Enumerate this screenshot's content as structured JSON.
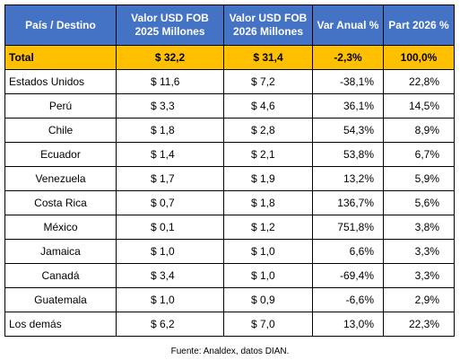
{
  "colors": {
    "header_bg": "#4472c4",
    "header_text": "#ffffff",
    "total_bg": "#ffc000",
    "border": "#000000"
  },
  "table": {
    "headers": [
      {
        "lines": [
          "País / Destino"
        ]
      },
      {
        "lines": [
          "Valor USD FOB",
          "2025 Millones"
        ]
      },
      {
        "lines": [
          "Valor USD FOB",
          "2026 Millones"
        ]
      },
      {
        "lines": [
          "Var Anual %"
        ]
      },
      {
        "lines": [
          "Part 2026 %"
        ]
      }
    ],
    "total": {
      "label": "Total",
      "v2025": "$ 32,2",
      "v2026": "$ 31,4",
      "var": "-2,3%",
      "part": "100,0%"
    },
    "rows": [
      {
        "country": "Estados Unidos",
        "v2025": "$ 11,6",
        "v2026": "$ 7,2",
        "var": "-38,1%",
        "part": "22,8%"
      },
      {
        "country": "Perú",
        "v2025": "$ 3,3",
        "v2026": "$ 4,6",
        "var": "36,1%",
        "part": "14,5%"
      },
      {
        "country": "Chile",
        "v2025": "$ 1,8",
        "v2026": "$ 2,8",
        "var": "54,3%",
        "part": "8,9%"
      },
      {
        "country": "Ecuador",
        "v2025": "$ 1,4",
        "v2026": "$ 2,1",
        "var": "53,8%",
        "part": "6,7%"
      },
      {
        "country": "Venezuela",
        "v2025": "$ 1,7",
        "v2026": "$ 1,9",
        "var": "13,2%",
        "part": "5,9%"
      },
      {
        "country": "Costa Rica",
        "v2025": "$ 0,7",
        "v2026": "$ 1,8",
        "var": "136,7%",
        "part": "5,6%"
      },
      {
        "country": "México",
        "v2025": "$ 0,1",
        "v2026": "$ 1,2",
        "var": "751,8%",
        "part": "3,8%"
      },
      {
        "country": "Jamaica",
        "v2025": "$ 1,0",
        "v2026": "$ 1,0",
        "var": "6,6%",
        "part": "3,3%"
      },
      {
        "country": "Canadá",
        "v2025": "$ 3,4",
        "v2026": "$ 1,0",
        "var": "-69,4%",
        "part": "3,3%"
      },
      {
        "country": "Guatemala",
        "v2025": "$ 1,0",
        "v2026": "$ 0,9",
        "var": "-6,6%",
        "part": "2,9%"
      },
      {
        "country": "Los demás",
        "v2025": "$ 6,2",
        "v2026": "$ 7,0",
        "var": "13,0%",
        "part": "22,3%"
      }
    ]
  },
  "source": "Fuente: Analdex, datos DIAN."
}
